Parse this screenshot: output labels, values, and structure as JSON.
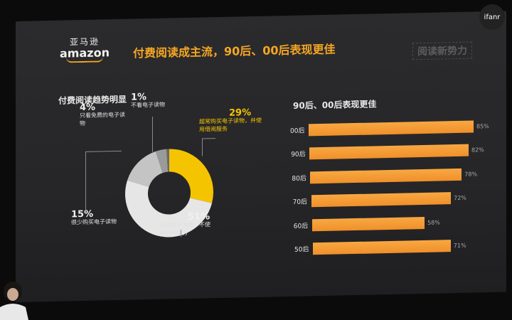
{
  "logo": {
    "cn": "亚马逊",
    "en": "amazon"
  },
  "slide_title": "付费阅读成主流，90后、00后表现更佳",
  "corner_tag": "阅读新势力",
  "watermark": "ifanr",
  "left_title": "付费阅读趋势明显",
  "right_title": "90后、00后表现更佳",
  "pie": [
    {
      "pct": "29%",
      "text": "超常购买电子读物，并使用借阅服务",
      "value": 29,
      "color": "#f5c400"
    },
    {
      "pct": "51%",
      "text": "购买电子读物，不使用借阅服务",
      "value": 51,
      "color": "#e6e6e6"
    },
    {
      "pct": "15%",
      "text": "很少购买电子读物",
      "value": 15,
      "color": "#c4c4c4"
    },
    {
      "pct": "4%",
      "text": "只看免费的电子读物",
      "value": 4,
      "color": "#9a9a9a"
    },
    {
      "pct": "1%",
      "text": "不看电子读物",
      "value": 1,
      "color": "#6a6a6a"
    }
  ],
  "bars": [
    {
      "label": "00后",
      "value": 85,
      "text": "85%"
    },
    {
      "label": "90后",
      "value": 82,
      "text": "82%"
    },
    {
      "label": "80后",
      "value": 78,
      "text": "78%"
    },
    {
      "label": "70后",
      "value": 72,
      "text": "72%"
    },
    {
      "label": "60后",
      "value": 58,
      "text": "58%"
    },
    {
      "label": "50后",
      "value": 71,
      "text": "71%"
    }
  ]
}
